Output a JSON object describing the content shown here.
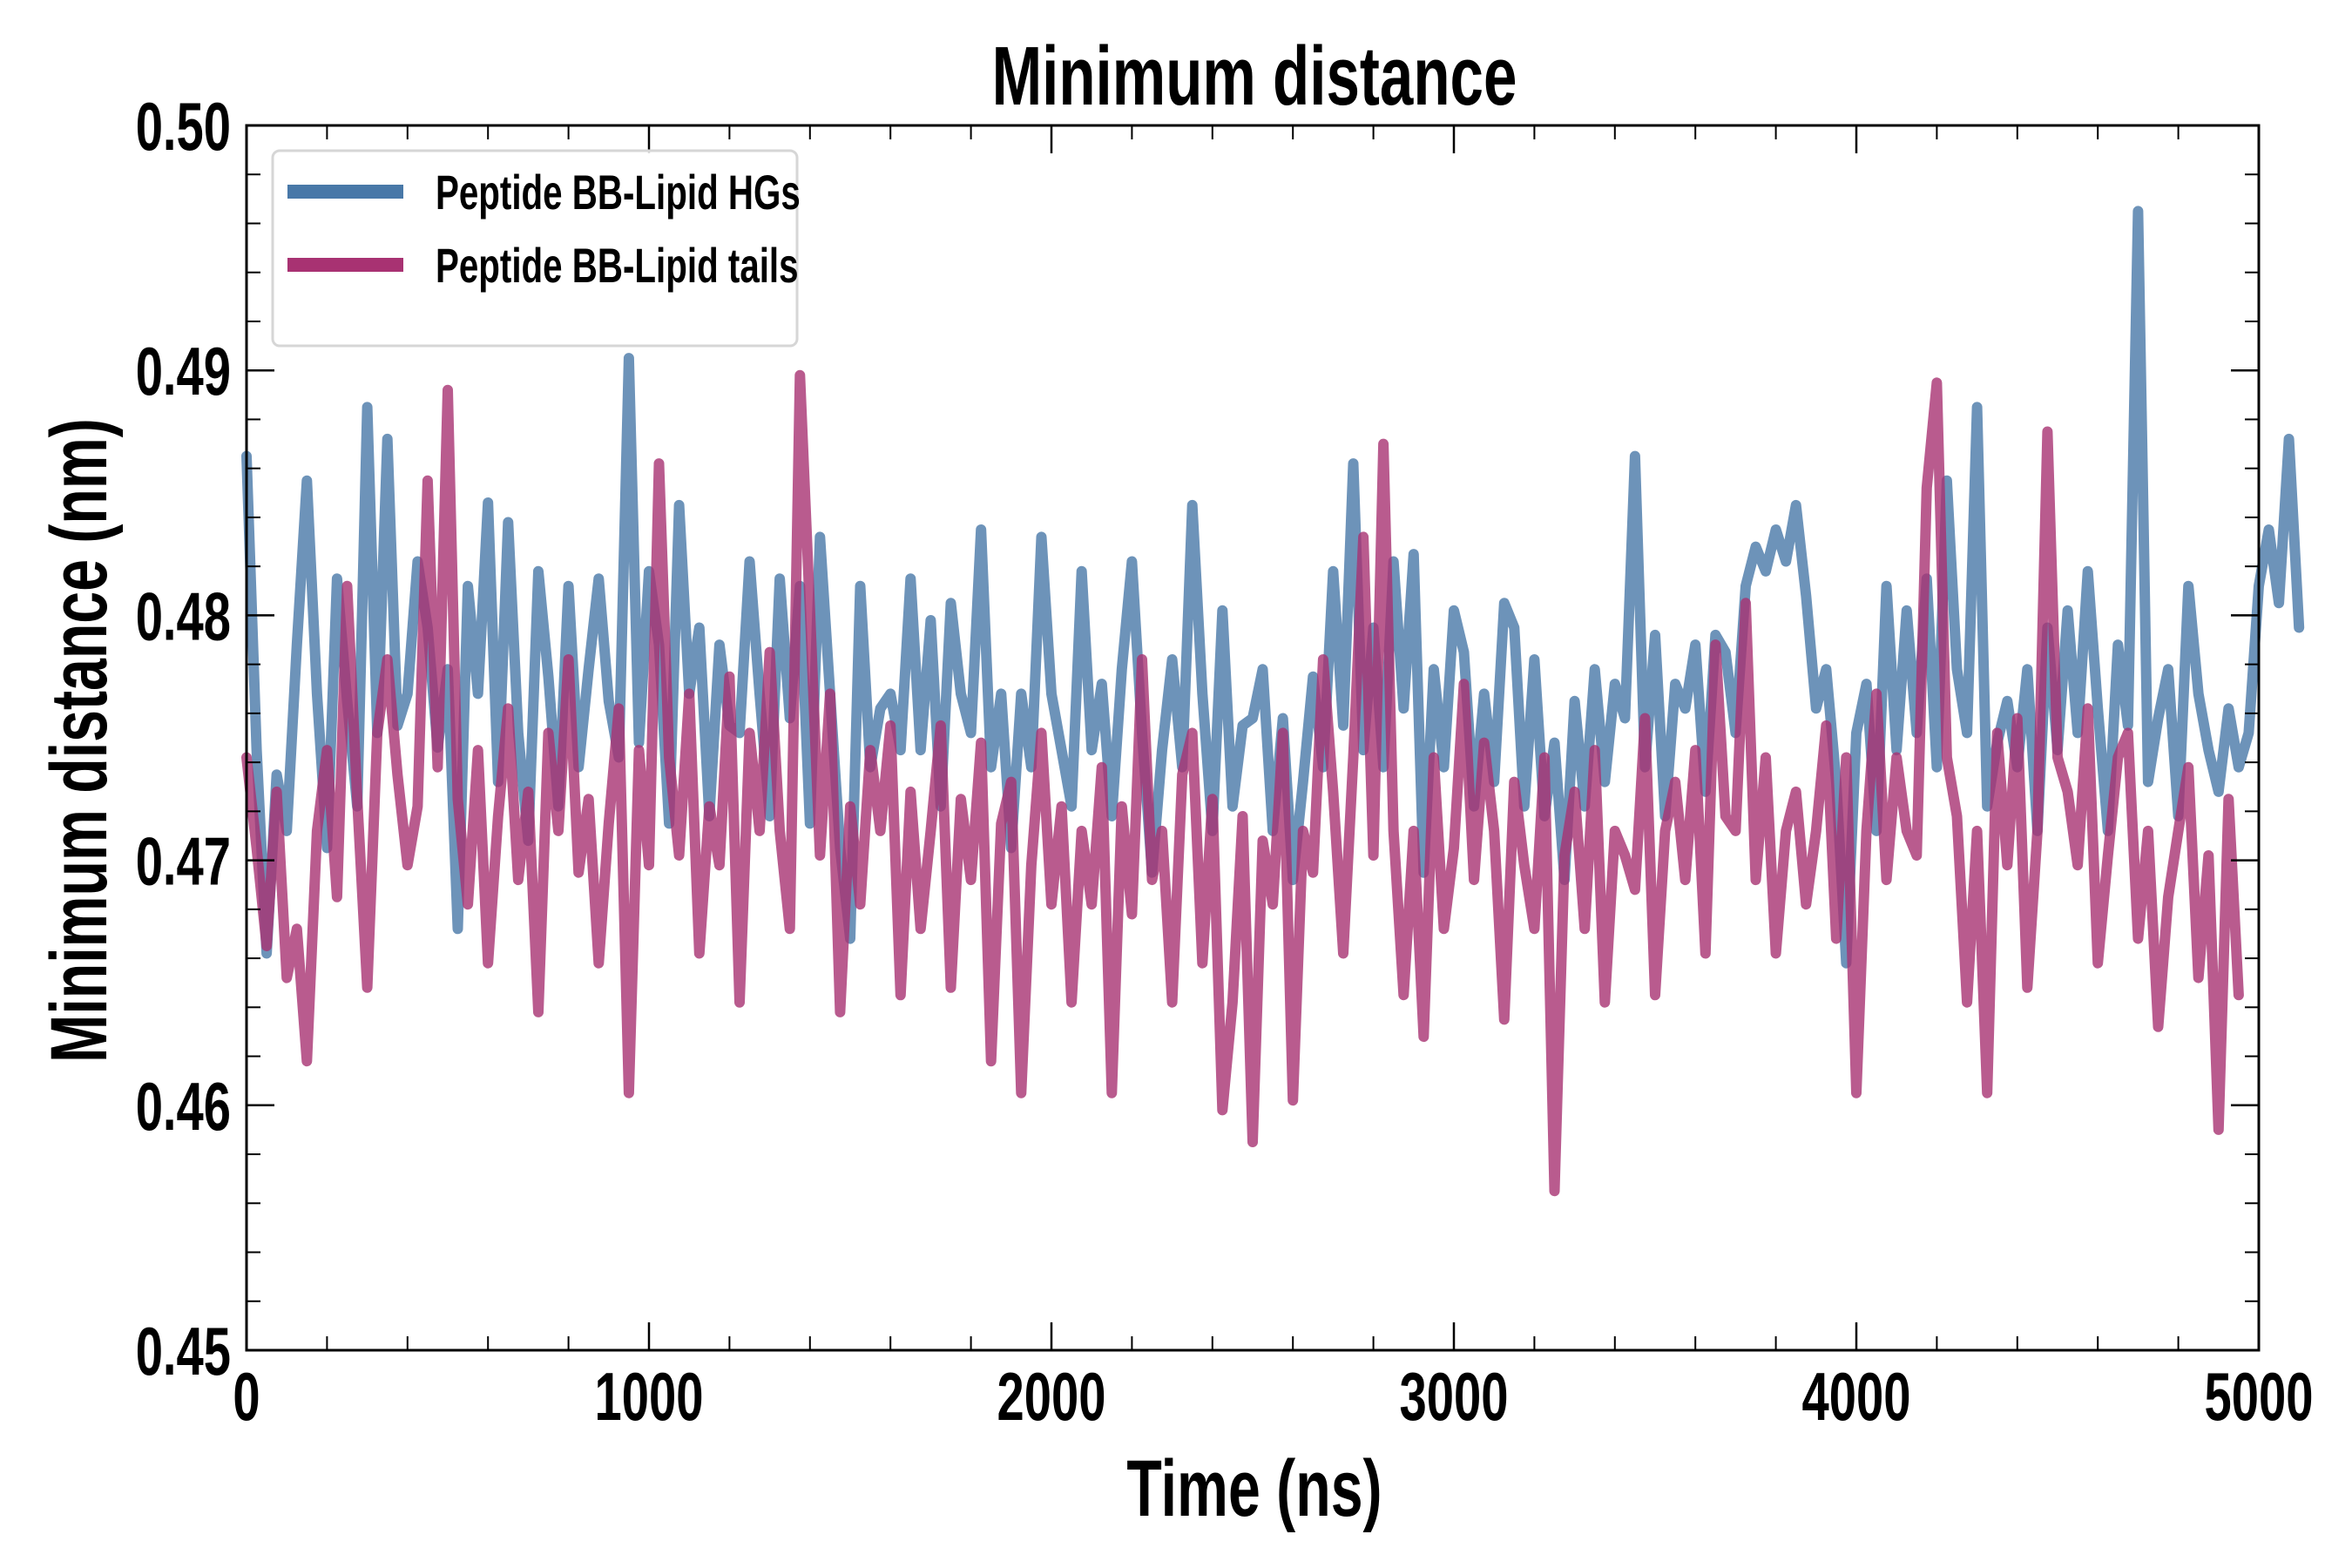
{
  "chart_data": {
    "type": "line",
    "title": "Minimum distance",
    "xlabel": "Time (ns)",
    "ylabel": "Minimum distance (nm)",
    "xlim": [
      0,
      5000
    ],
    "ylim": [
      0.45,
      0.5
    ],
    "x_ticks": [
      "0",
      "1000",
      "2000",
      "3000",
      "4000",
      "5000"
    ],
    "x_tick_values": [
      0,
      1000,
      2000,
      3000,
      4000,
      5000
    ],
    "y_ticks": [
      "0.45",
      "0.46",
      "0.47",
      "0.48",
      "0.49",
      "0.50"
    ],
    "y_tick_values": [
      0.45,
      0.46,
      0.47,
      0.48,
      0.49,
      0.5
    ],
    "grid": false,
    "legend_position": "top-left",
    "x_step": 25,
    "series": [
      {
        "name": "Peptide BB-Lipid HGs",
        "color": "#4878a8",
        "values": [
          0.4865,
          0.4745,
          0.4662,
          0.4735,
          0.4712,
          0.4788,
          0.4855,
          0.4768,
          0.4705,
          0.4815,
          0.4765,
          0.4722,
          0.4885,
          0.4752,
          0.4872,
          0.4755,
          0.4768,
          0.4822,
          0.4795,
          0.4746,
          0.4778,
          0.4672,
          0.4812,
          0.4768,
          0.4846,
          0.4732,
          0.4838,
          0.4752,
          0.4708,
          0.4818,
          0.4775,
          0.4722,
          0.4812,
          0.4738,
          0.4778,
          0.4815,
          0.4765,
          0.4742,
          0.4905,
          0.4748,
          0.4818,
          0.4788,
          0.4715,
          0.4845,
          0.4768,
          0.4795,
          0.4718,
          0.4788,
          0.4755,
          0.4752,
          0.4822,
          0.4768,
          0.4718,
          0.4815,
          0.4758,
          0.4812,
          0.4715,
          0.4832,
          0.4768,
          0.4705,
          0.4668,
          0.4812,
          0.4738,
          0.4762,
          0.4768,
          0.4745,
          0.4815,
          0.4745,
          0.4798,
          0.4722,
          0.4805,
          0.4768,
          0.4752,
          0.4835,
          0.4738,
          0.4768,
          0.4705,
          0.4768,
          0.4738,
          0.4832,
          0.4768,
          0.4745,
          0.4722,
          0.4818,
          0.4745,
          0.4772,
          0.4718,
          0.4778,
          0.4822,
          0.4752,
          0.4695,
          0.4745,
          0.4782,
          0.4738,
          0.4845,
          0.4768,
          0.4712,
          0.4802,
          0.4722,
          0.4755,
          0.4758,
          0.4778,
          0.4712,
          0.4758,
          0.4692,
          0.4732,
          0.4775,
          0.4738,
          0.4818,
          0.4755,
          0.4862,
          0.4745,
          0.4795,
          0.4738,
          0.4822,
          0.4762,
          0.4825,
          0.4695,
          0.4778,
          0.4738,
          0.4802,
          0.4785,
          0.4722,
          0.4768,
          0.4732,
          0.4805,
          0.4795,
          0.4722,
          0.4782,
          0.4718,
          0.4748,
          0.4692,
          0.4765,
          0.4722,
          0.4778,
          0.4732,
          0.4772,
          0.4758,
          0.4865,
          0.4738,
          0.4792,
          0.4718,
          0.4772,
          0.4762,
          0.4788,
          0.4728,
          0.4792,
          0.4785,
          0.4752,
          0.4812,
          0.4828,
          0.4818,
          0.4835,
          0.4822,
          0.4845,
          0.4808,
          0.4762,
          0.4778,
          0.4732,
          0.4658,
          0.4752,
          0.4772,
          0.4712,
          0.4812,
          0.4745,
          0.4802,
          0.4752,
          0.4815,
          0.4738,
          0.4855,
          0.4778,
          0.4752,
          0.4885,
          0.4722,
          0.4748,
          0.4765,
          0.4738,
          0.4778,
          0.4712,
          0.4795,
          0.4745,
          0.4802,
          0.4752,
          0.4818,
          0.4762,
          0.4712,
          0.4788,
          0.4755,
          0.4965,
          0.4732,
          0.4758,
          0.4778,
          0.4718,
          0.4812,
          0.4768,
          0.4745,
          0.4728,
          0.4762,
          0.4738,
          0.4752,
          0.4812,
          0.4835,
          0.4805,
          0.4872,
          0.4795
        ]
      },
      {
        "name": "Peptide BB-Lipid tails",
        "color": "#a83272",
        "values": [
          0.4742,
          0.4705,
          0.4665,
          0.4728,
          0.4652,
          0.4672,
          0.4618,
          0.4712,
          0.4745,
          0.4685,
          0.4812,
          0.4725,
          0.4648,
          0.4752,
          0.4782,
          0.4735,
          0.4698,
          0.4722,
          0.4855,
          0.4738,
          0.4892,
          0.4725,
          0.4682,
          0.4745,
          0.4658,
          0.4718,
          0.4762,
          0.4692,
          0.4728,
          0.4638,
          0.4752,
          0.4712,
          0.4782,
          0.4695,
          0.4725,
          0.4658,
          0.4715,
          0.4762,
          0.4605,
          0.4745,
          0.4698,
          0.4862,
          0.4742,
          0.4702,
          0.4768,
          0.4662,
          0.4722,
          0.4698,
          0.4775,
          0.4642,
          0.4752,
          0.4712,
          0.4785,
          0.4712,
          0.4672,
          0.4898,
          0.4802,
          0.4702,
          0.4768,
          0.4638,
          0.4722,
          0.4682,
          0.4745,
          0.4712,
          0.4755,
          0.4645,
          0.4728,
          0.4672,
          0.4712,
          0.4755,
          0.4648,
          0.4725,
          0.4692,
          0.4748,
          0.4618,
          0.4715,
          0.4732,
          0.4605,
          0.4698,
          0.4752,
          0.4682,
          0.4722,
          0.4642,
          0.4712,
          0.4682,
          0.4738,
          0.4605,
          0.4722,
          0.4678,
          0.4782,
          0.4692,
          0.4712,
          0.4642,
          0.4735,
          0.4752,
          0.4658,
          0.4725,
          0.4598,
          0.4642,
          0.4718,
          0.4585,
          0.4708,
          0.4682,
          0.4752,
          0.4602,
          0.4712,
          0.4695,
          0.4782,
          0.4728,
          0.4662,
          0.4742,
          0.4832,
          0.4702,
          0.487,
          0.4712,
          0.4645,
          0.4712,
          0.4628,
          0.4742,
          0.4672,
          0.4705,
          0.4772,
          0.4692,
          0.4748,
          0.4712,
          0.4635,
          0.4732,
          0.4698,
          0.4672,
          0.4742,
          0.4565,
          0.4702,
          0.4728,
          0.4672,
          0.4745,
          0.4642,
          0.4712,
          0.4702,
          0.4688,
          0.4758,
          0.4645,
          0.4712,
          0.4732,
          0.4692,
          0.4745,
          0.4662,
          0.4788,
          0.4718,
          0.4712,
          0.4805,
          0.4692,
          0.4742,
          0.4662,
          0.4712,
          0.4728,
          0.4682,
          0.4712,
          0.4755,
          0.4668,
          0.4742,
          0.4605,
          0.4712,
          0.4768,
          0.4692,
          0.4742,
          0.4712,
          0.4702,
          0.4852,
          0.4895,
          0.4742,
          0.4718,
          0.4642,
          0.4712,
          0.4605,
          0.4752,
          0.4698,
          0.4758,
          0.4648,
          0.4712,
          0.4875,
          0.4742,
          0.4728,
          0.4698,
          0.4762,
          0.4658,
          0.4702,
          0.4742,
          0.4752,
          0.4668,
          0.4712,
          0.4632,
          0.4685,
          0.4712,
          0.4738,
          0.4652,
          0.4702,
          0.459,
          0.4725,
          0.4645
        ]
      }
    ]
  }
}
